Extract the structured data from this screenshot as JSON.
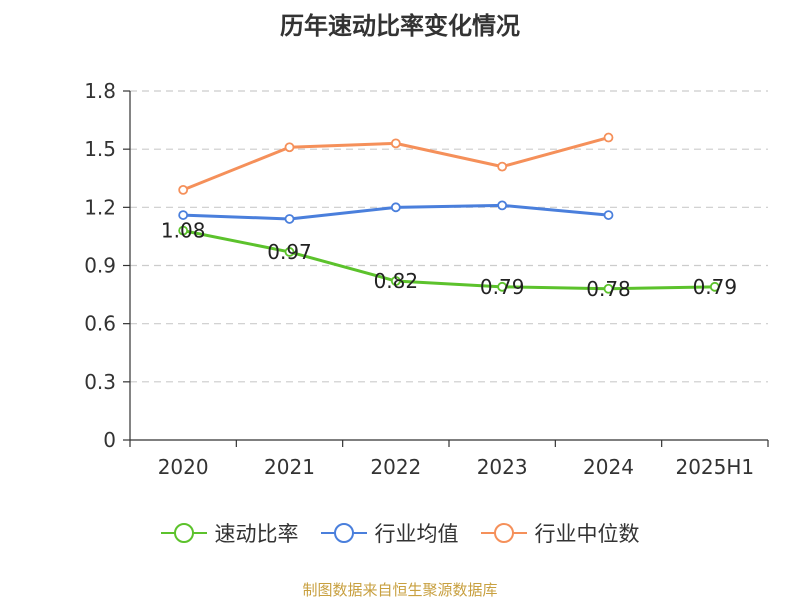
{
  "chart_data": {
    "type": "line",
    "title": "历年速动比率变化情况",
    "categories": [
      "2020",
      "2021",
      "2022",
      "2023",
      "2024",
      "2025H1"
    ],
    "ylim": [
      0,
      1.8
    ],
    "yticks": [
      "0",
      "0.3",
      "0.6",
      "0.9",
      "1.2",
      "1.5",
      "1.8"
    ],
    "grid": true,
    "legend_position": "bottom",
    "series": [
      {
        "name": "速动比率",
        "color": "#5cc22c",
        "values": [
          1.08,
          0.97,
          0.82,
          0.79,
          0.78,
          0.79
        ],
        "labels": [
          "1.08",
          "0.97",
          "0.82",
          "0.79",
          "0.78",
          "0.79"
        ]
      },
      {
        "name": "行业均值",
        "color": "#4a7fdc",
        "values": [
          1.16,
          1.14,
          1.2,
          1.21,
          1.16,
          null
        ]
      },
      {
        "name": "行业中位数",
        "color": "#f5905a",
        "values": [
          1.29,
          1.51,
          1.53,
          1.41,
          1.56,
          null
        ]
      }
    ]
  },
  "source_text": "制图数据来自恒生聚源数据库"
}
